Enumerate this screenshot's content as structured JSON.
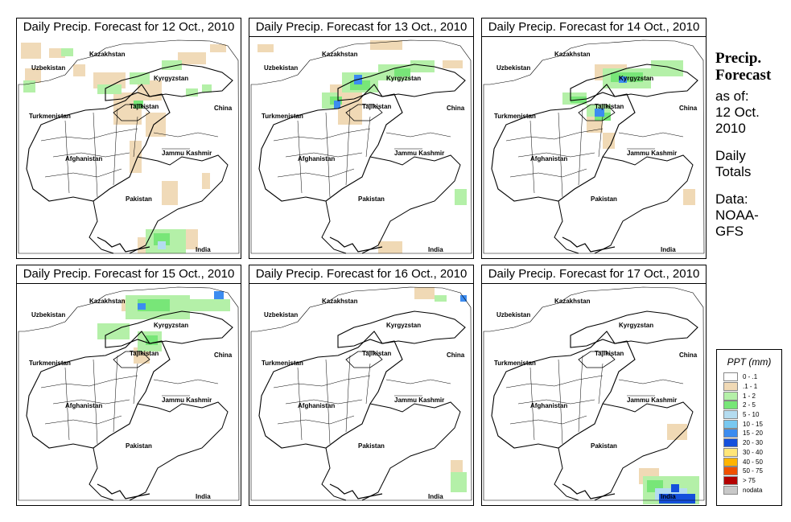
{
  "panels": [
    {
      "title": "Daily Precip. Forecast for  12 Oct., 2010"
    },
    {
      "title": "Daily Precip. Forecast for  13 Oct., 2010"
    },
    {
      "title": "Daily Precip. Forecast for  14 Oct., 2010"
    },
    {
      "title": "Daily Precip. Forecast for  15 Oct., 2010"
    },
    {
      "title": "Daily Precip. Forecast for  16 Oct., 2010"
    },
    {
      "title": "Daily Precip. Forecast for  17 Oct., 2010"
    }
  ],
  "map_labels": {
    "kazakhstan": "Kazakhstan",
    "uzbekistan": "Uzbekistan",
    "kyrgyzstan": "Kyrgyzstan",
    "tajikistan": "Tajikistan",
    "turkmenistan": "Turkmenistan",
    "china": "China",
    "jammu_kashmir": "Jammu Kashmir",
    "afghanistan": "Afghanistan",
    "pakistan": "Pakistan",
    "india": "India"
  },
  "side": {
    "heading_line1": "Precip.",
    "heading_line2": "Forecast",
    "asof_1": "as of:",
    "asof_2": "12 Oct.",
    "asof_3": "2010",
    "daily_1": "Daily",
    "daily_2": "Totals",
    "data_1": "Data:",
    "data_2": "NOAA-",
    "data_3": "GFS"
  },
  "legend": {
    "title": "PPT (mm)",
    "items": [
      {
        "label": "0 - .1",
        "color": "#ffffff"
      },
      {
        "label": ".1 - 1",
        "color": "#f0d9b5"
      },
      {
        "label": "1 - 2",
        "color": "#b4f0a8"
      },
      {
        "label": "2 - 5",
        "color": "#78e678"
      },
      {
        "label": "5 - 10",
        "color": "#b4dcf0"
      },
      {
        "label": "10 - 15",
        "color": "#78c8f0"
      },
      {
        "label": "15 - 20",
        "color": "#3c8cf0"
      },
      {
        "label": "20 - 30",
        "color": "#1450dc"
      },
      {
        "label": "30 - 40",
        "color": "#ffe678"
      },
      {
        "label": "40 - 50",
        "color": "#ffb400"
      },
      {
        "label": "50 - 75",
        "color": "#f05000"
      },
      {
        "label": "> 75",
        "color": "#b40000"
      },
      {
        "label": "nodata",
        "color": "#c8c8c8"
      }
    ]
  },
  "precip_intensity": {
    "day_12": "widespread light, scattered moderate north and south-east",
    "day_13": "moderate to heavy north-east",
    "day_14": "moderate to heavy north-east",
    "day_15": "moderate north-east",
    "day_16": "light scattered",
    "day_17": "heavy south-east"
  }
}
